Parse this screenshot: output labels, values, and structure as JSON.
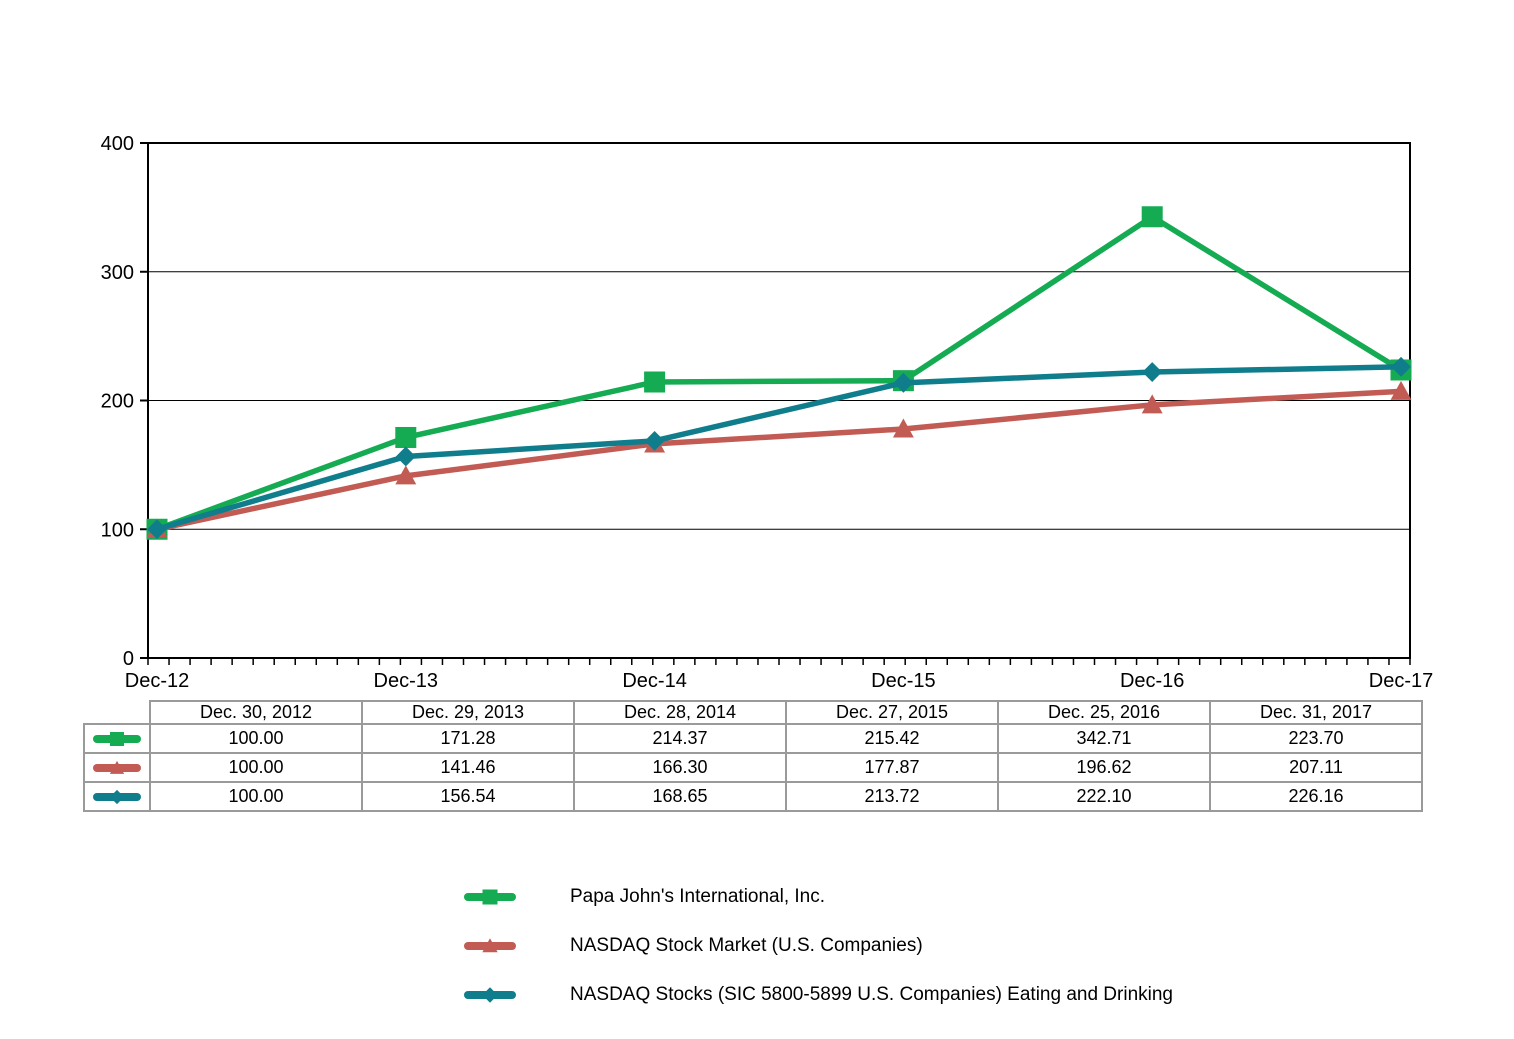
{
  "chart_data": {
    "type": "line",
    "title": "",
    "xlabel": "",
    "ylabel": "",
    "x_tick_labels": [
      "Dec-12",
      "Dec-13",
      "Dec-14",
      "Dec-15",
      "Dec-16",
      "Dec-17"
    ],
    "y_ticks": [
      0,
      100,
      200,
      300,
      400
    ],
    "ylim": [
      0,
      400
    ],
    "grid": "horizontal-major-only",
    "x_minor_ticks": "monthly (12 per year interval)",
    "legend_position": "bottom-left-of-center",
    "series": [
      {
        "name": "Papa John's International, Inc.",
        "marker": "square",
        "color": "#14AB52",
        "values": [
          100.0,
          171.28,
          214.37,
          215.42,
          342.71,
          223.7
        ]
      },
      {
        "name": "NASDAQ Stock Market (U.S. Companies)",
        "marker": "triangle",
        "color": "#C25B54",
        "values": [
          100.0,
          141.46,
          166.3,
          177.87,
          196.62,
          207.11
        ]
      },
      {
        "name": "NASDAQ Stocks (SIC 5800-5899 U.S. Companies) Eating and Drinking",
        "marker": "diamond",
        "color": "#107D8C",
        "values": [
          100.0,
          156.54,
          168.65,
          213.72,
          222.1,
          226.16
        ]
      }
    ]
  },
  "table": {
    "column_headers": [
      "Dec. 30, 2012",
      "Dec. 29, 2013",
      "Dec. 28, 2014",
      "Dec. 27, 2015",
      "Dec. 25, 2016",
      "Dec. 31, 2017"
    ],
    "rows": [
      {
        "series": "Papa John's International, Inc.",
        "values": [
          "100.00",
          "171.28",
          "214.37",
          "215.42",
          "342.71",
          "223.70"
        ]
      },
      {
        "series": "NASDAQ Stock Market (U.S. Companies)",
        "values": [
          "100.00",
          "141.46",
          "166.30",
          "177.87",
          "196.62",
          "207.11"
        ]
      },
      {
        "series": "NASDAQ Stocks (SIC 5800-5899 U.S. Companies) Eating and Drinking",
        "values": [
          "100.00",
          "156.54",
          "168.65",
          "213.72",
          "222.10",
          "226.16"
        ]
      }
    ]
  }
}
